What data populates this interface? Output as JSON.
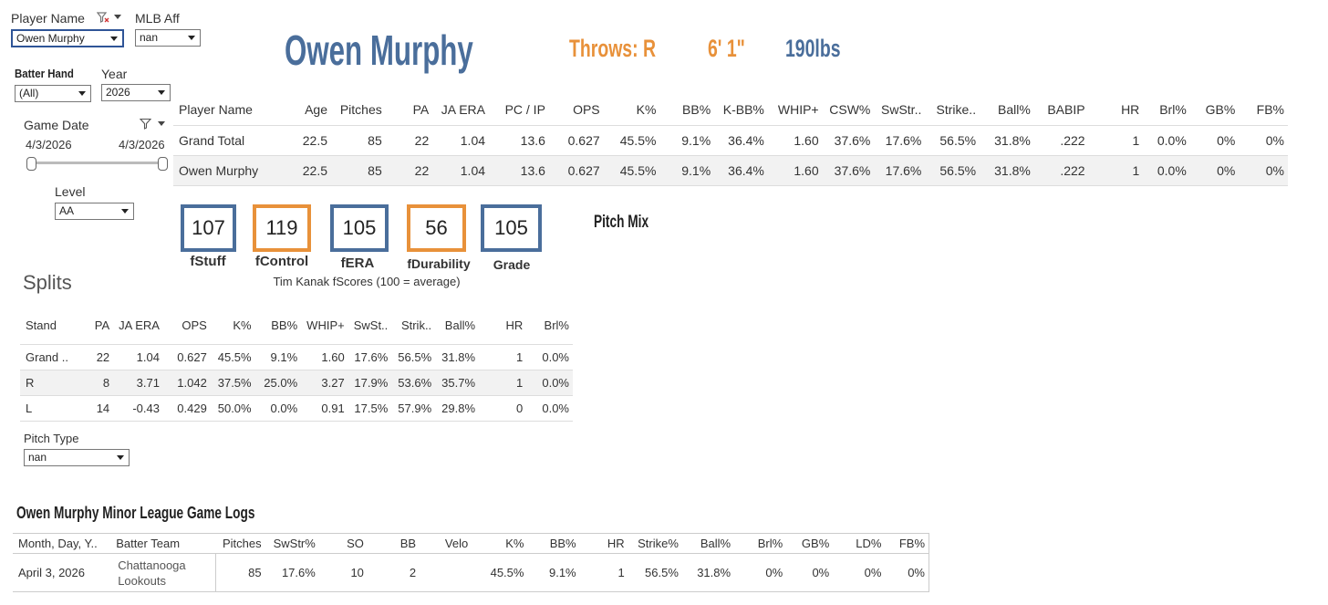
{
  "filters": {
    "player_name": {
      "label": "Player Name",
      "value": "Owen Murphy"
    },
    "mlb_aff": {
      "label": "MLB Aff",
      "value": "nan"
    },
    "batter_hand": {
      "label": "Batter Hand",
      "value": "(All)"
    },
    "year": {
      "label": "Year",
      "value": "2026"
    },
    "game_date": {
      "label": "Game Date",
      "start": "4/3/2026",
      "end": "4/3/2026"
    },
    "level": {
      "label": "Level",
      "value": "AA"
    },
    "pitch_type": {
      "label": "Pitch Type",
      "value": "nan"
    }
  },
  "header": {
    "name": "Owen Murphy",
    "throws": "Throws: R",
    "height": "6' 1\"",
    "weight": "190lbs",
    "colors": {
      "blue": "#4a6e9b",
      "orange": "#e8913a"
    }
  },
  "summary": {
    "columns": [
      "Player Name",
      "Age",
      "Pitches",
      "PA",
      "JA ERA",
      "PC / IP",
      "OPS",
      "K%",
      "BB%",
      "K-BB%",
      "WHIP+",
      "CSW%",
      "SwStr..",
      "Strike..",
      "Ball%",
      "BABIP",
      "HR",
      "Brl%",
      "GB%",
      "FB%"
    ],
    "rows": [
      [
        "Grand Total",
        "22.5",
        "85",
        "22",
        "1.04",
        "13.6",
        "0.627",
        "45.5%",
        "9.1%",
        "36.4%",
        "1.60",
        "37.6%",
        "17.6%",
        "56.5%",
        "31.8%",
        ".222",
        "1",
        "0.0%",
        "0%",
        "0%"
      ],
      [
        "Owen Murphy",
        "22.5",
        "85",
        "22",
        "1.04",
        "13.6",
        "0.627",
        "45.5%",
        "9.1%",
        "36.4%",
        "1.60",
        "37.6%",
        "17.6%",
        "56.5%",
        "31.8%",
        ".222",
        "1",
        "0.0%",
        "0%",
        "0%"
      ]
    ]
  },
  "fscores": {
    "cards": [
      {
        "value": "107",
        "label": "fStuff",
        "color": "blue"
      },
      {
        "value": "119",
        "label": "fControl",
        "color": "orange"
      },
      {
        "value": "105",
        "label": "fERA",
        "color": "blue"
      },
      {
        "value": "56",
        "label": "fDurability",
        "color": "orange"
      },
      {
        "value": "105",
        "label": "Grade",
        "color": "blue"
      }
    ],
    "caption": "Tim Kanak fScores (100 = average)"
  },
  "pitch_mix": {
    "title": "Pitch Mix"
  },
  "splits": {
    "title": "Splits",
    "columns": [
      "Stand",
      "PA",
      "JA ERA",
      "OPS",
      "K%",
      "BB%",
      "WHIP+",
      "SwSt..",
      "Strik..",
      "Ball%",
      "HR",
      "Brl%"
    ],
    "rows": [
      [
        "Grand ..",
        "22",
        "1.04",
        "0.627",
        "45.5%",
        "9.1%",
        "1.60",
        "17.6%",
        "56.5%",
        "31.8%",
        "1",
        "0.0%"
      ],
      [
        "R",
        "8",
        "3.71",
        "1.042",
        "37.5%",
        "25.0%",
        "3.27",
        "17.9%",
        "53.6%",
        "35.7%",
        "1",
        "0.0%"
      ],
      [
        "L",
        "14",
        "-0.43",
        "0.429",
        "50.0%",
        "0.0%",
        "0.91",
        "17.5%",
        "57.9%",
        "29.8%",
        "0",
        "0.0%"
      ]
    ]
  },
  "gamelogs": {
    "title": "Owen Murphy Minor League Game Logs",
    "columns": [
      "Month, Day, Y..",
      "Batter Team",
      "Pitches",
      "SwStr%",
      "SO",
      "BB",
      "Velo",
      "K%",
      "BB%",
      "HR",
      "Strike%",
      "Ball%",
      "Brl%",
      "GB%",
      "LD%",
      "FB%"
    ],
    "rows": [
      [
        "April 3, 2026",
        "Chattanooga Lookouts",
        "85",
        "17.6%",
        "10",
        "2",
        "",
        "45.5%",
        "9.1%",
        "1",
        "56.5%",
        "31.8%",
        "0%",
        "0%",
        "0%",
        "0%"
      ]
    ]
  }
}
